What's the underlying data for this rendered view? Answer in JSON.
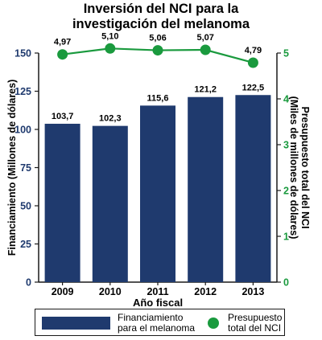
{
  "title_lines": [
    "Inversión del NCI para la",
    "investigación del melanoma"
  ],
  "colors": {
    "bar": "#1f3a6e",
    "line": "#1a9a3e",
    "left_axis_text": "#1f3a6e",
    "right_axis_text": "#1a9a3e"
  },
  "legend": {
    "bar_label": "Financiamiento\npara el melanoma",
    "line_label": "Presupuesto\ntotal del NCI"
  },
  "chart_data": {
    "type": "bar",
    "xlabel": "Año fiscal",
    "ylabel_left": "Financiamiento (Millones de dólares)",
    "ylabel_right": [
      "Presupuesto total del NCI",
      "(Miles de millones de dólares)"
    ],
    "categories": [
      "2009",
      "2010",
      "2011",
      "2012",
      "2013"
    ],
    "ylim_left": [
      0,
      150
    ],
    "yticks_left": [
      "0",
      "25",
      "50",
      "75",
      "100",
      "125",
      "150"
    ],
    "ylim_right": [
      0,
      5
    ],
    "yticks_right": [
      "0",
      "1",
      "2",
      "3",
      "4",
      "5"
    ],
    "grid": false,
    "legend_position": "bottom",
    "series": [
      {
        "name": "Financiamiento para el melanoma",
        "type": "bar",
        "axis": "left",
        "values": [
          103.7,
          102.3,
          115.6,
          121.2,
          122.5
        ],
        "labels": [
          "103,7",
          "102,3",
          "115,6",
          "121,2",
          "122,5"
        ]
      },
      {
        "name": "Presupuesto total del NCI",
        "type": "line",
        "axis": "right",
        "values": [
          4.97,
          5.1,
          5.06,
          5.07,
          4.79
        ],
        "labels": [
          "4,97",
          "5,10",
          "5,06",
          "5,07",
          "4,79"
        ]
      }
    ]
  }
}
